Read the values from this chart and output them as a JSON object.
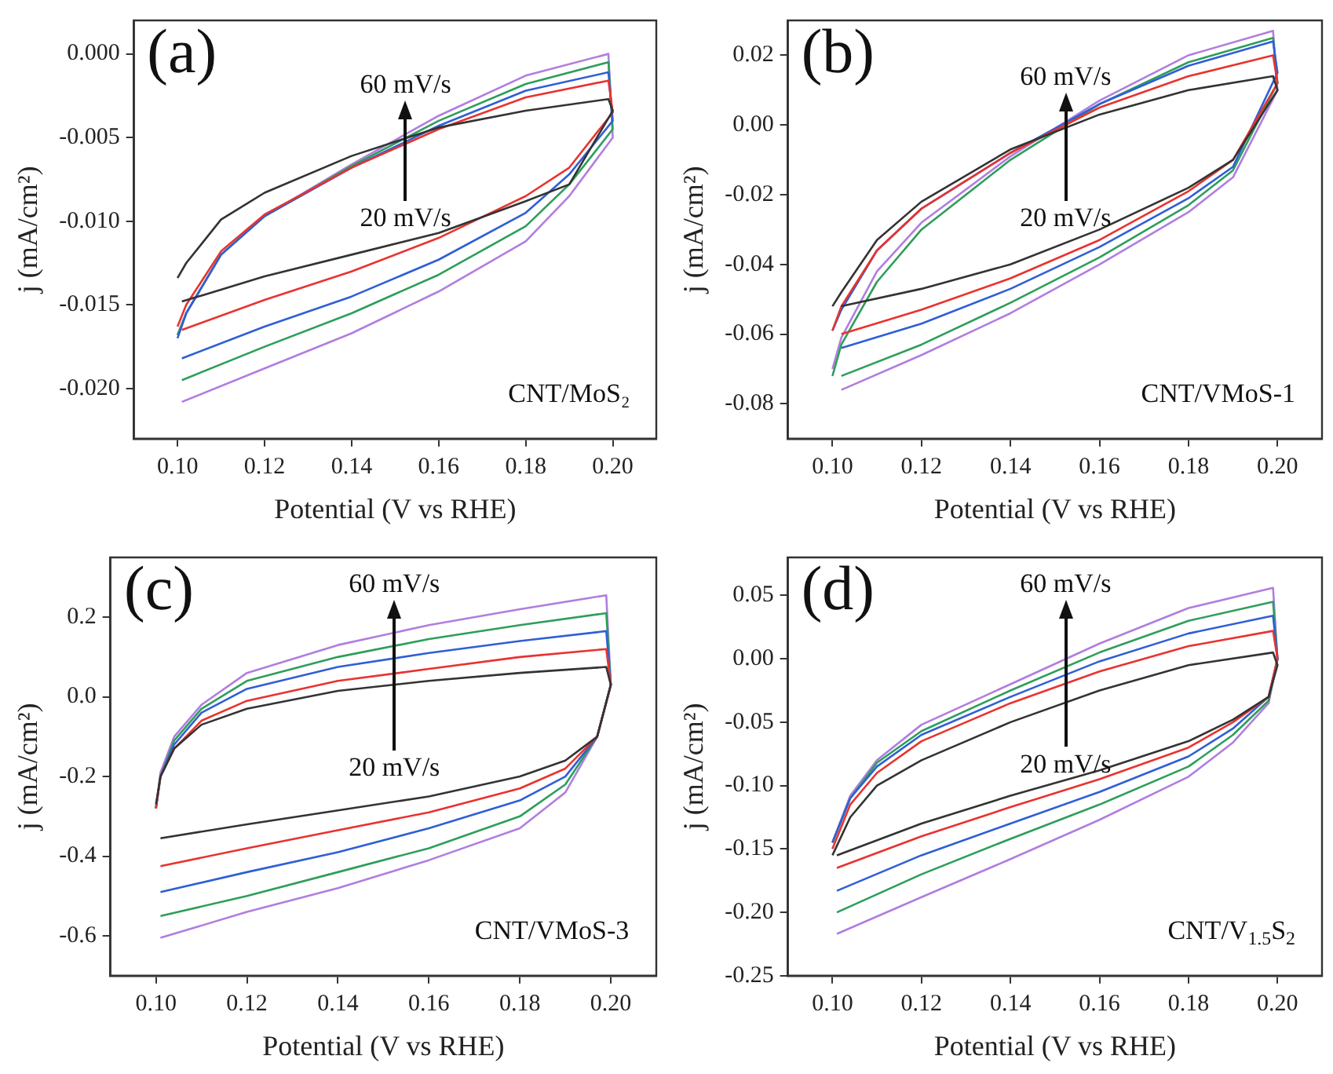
{
  "chart_data": [
    {
      "type": "line",
      "xlabel": "Potential (V vs RHE)",
      "ylabel": "j (mA/cm²)",
      "annotations": [
        "(a)",
        "60 mV/s",
        "20 mV/s",
        "CNT/MoS₂"
      ],
      "xlim": [
        0.09,
        0.21
      ],
      "xticks": [
        {
          "value": 0.1,
          "label": "0.10"
        },
        {
          "value": 0.12,
          "label": "0.12"
        },
        {
          "value": 0.14,
          "label": "0.14"
        },
        {
          "value": 0.16,
          "label": "0.16"
        },
        {
          "value": 0.18,
          "label": "0.18"
        },
        {
          "value": 0.2,
          "label": "0.20"
        }
      ],
      "ylim": [
        -0.023,
        0.002
      ],
      "yticks": [
        {
          "value": -0.02,
          "label": "-0.020"
        },
        {
          "value": -0.015,
          "label": "-0.015"
        },
        {
          "value": -0.01,
          "label": "-0.010"
        },
        {
          "value": -0.005,
          "label": "-0.005"
        },
        {
          "value": 0,
          "label": "0.000"
        }
      ],
      "x": [
        0.101,
        0.12,
        0.14,
        0.16,
        0.18,
        0.19,
        0.2,
        0.199,
        0.18,
        0.16,
        0.14,
        0.12,
        0.11,
        0.102,
        0.1
      ],
      "series": [
        {
          "color": "#333333",
          "values": [
            -0.0148,
            -0.0133,
            -0.012,
            -0.0107,
            -0.0088,
            -0.0078,
            -0.0034,
            -0.0027,
            -0.0034,
            -0.0044,
            -0.0061,
            -0.0083,
            -0.0099,
            -0.0125,
            -0.0134
          ]
        },
        {
          "color": "#e8332f",
          "values": [
            -0.0165,
            -0.0147,
            -0.013,
            -0.011,
            -0.0085,
            -0.0068,
            -0.0035,
            -0.0016,
            -0.0026,
            -0.0045,
            -0.0068,
            -0.0096,
            -0.0118,
            -0.015,
            -0.0163
          ]
        },
        {
          "color": "#2f5fd6",
          "values": [
            -0.0182,
            -0.0163,
            -0.0145,
            -0.0123,
            -0.0095,
            -0.0072,
            -0.004,
            -0.0011,
            -0.0022,
            -0.0043,
            -0.0068,
            -0.0097,
            -0.012,
            -0.0155,
            -0.017
          ]
        },
        {
          "color": "#2e9e5a",
          "values": [
            -0.0195,
            -0.0175,
            -0.0155,
            -0.0132,
            -0.0103,
            -0.0078,
            -0.0045,
            -0.0005,
            -0.0018,
            -0.004,
            -0.0067,
            -0.0097,
            -0.012,
            -0.0155,
            -0.0168
          ]
        },
        {
          "color": "#b07ee0",
          "values": [
            -0.0208,
            -0.0188,
            -0.0167,
            -0.0142,
            -0.0112,
            -0.0085,
            -0.005,
            0.0,
            -0.0013,
            -0.0037,
            -0.0066,
            -0.0097,
            -0.012,
            -0.0155,
            -0.0168
          ]
        }
      ]
    },
    {
      "type": "line",
      "xlabel": "Potential (V vs RHE)",
      "ylabel": "j (mA/cm²)",
      "annotations": [
        "(b)",
        "60 mV/s",
        "20 mV/s",
        "CNT/VMoS-1"
      ],
      "xlim": [
        0.09,
        0.21
      ],
      "xticks": [
        {
          "value": 0.1,
          "label": "0.10"
        },
        {
          "value": 0.12,
          "label": "0.12"
        },
        {
          "value": 0.14,
          "label": "0.14"
        },
        {
          "value": 0.16,
          "label": "0.16"
        },
        {
          "value": 0.18,
          "label": "0.18"
        },
        {
          "value": 0.2,
          "label": "0.20"
        }
      ],
      "ylim": [
        -0.09,
        0.03
      ],
      "yticks": [
        {
          "value": -0.08,
          "label": "-0.08"
        },
        {
          "value": -0.06,
          "label": "-0.06"
        },
        {
          "value": -0.04,
          "label": "-0.04"
        },
        {
          "value": -0.02,
          "label": "-0.02"
        },
        {
          "value": 0,
          "label": "0.00"
        },
        {
          "value": 0.02,
          "label": "0.02"
        }
      ],
      "x": [
        0.102,
        0.12,
        0.14,
        0.16,
        0.18,
        0.19,
        0.2,
        0.199,
        0.18,
        0.16,
        0.14,
        0.12,
        0.11,
        0.102,
        0.1
      ],
      "series": [
        {
          "color": "#333333",
          "values": [
            -0.052,
            -0.047,
            -0.04,
            -0.03,
            -0.018,
            -0.01,
            0.01,
            0.014,
            0.01,
            0.003,
            -0.007,
            -0.022,
            -0.033,
            -0.048,
            -0.052
          ]
        },
        {
          "color": "#e8332f",
          "values": [
            -0.06,
            -0.053,
            -0.044,
            -0.033,
            -0.019,
            -0.01,
            0.012,
            0.02,
            0.014,
            0.005,
            -0.008,
            -0.024,
            -0.036,
            -0.052,
            -0.059
          ]
        },
        {
          "color": "#2f5fd6",
          "values": [
            -0.064,
            -0.057,
            -0.047,
            -0.035,
            -0.021,
            -0.012,
            0.015,
            0.024,
            0.017,
            0.006,
            -0.008,
            -0.024,
            -0.036,
            -0.053,
            -0.059
          ]
        },
        {
          "color": "#2e9e5a",
          "values": [
            -0.072,
            -0.063,
            -0.051,
            -0.038,
            -0.023,
            -0.013,
            0.012,
            0.025,
            0.018,
            0.006,
            -0.01,
            -0.03,
            -0.045,
            -0.063,
            -0.072
          ]
        },
        {
          "color": "#b07ee0",
          "values": [
            -0.076,
            -0.066,
            -0.054,
            -0.04,
            -0.025,
            -0.015,
            0.01,
            0.027,
            0.02,
            0.007,
            -0.009,
            -0.028,
            -0.042,
            -0.061,
            -0.07
          ]
        }
      ]
    },
    {
      "type": "line",
      "xlabel": "Potential (V vs RHE)",
      "ylabel": "j (mA/cm²)",
      "annotations": [
        "(c)",
        "60 mV/s",
        "20 mV/s",
        "CNT/VMoS-3"
      ],
      "xlim": [
        0.09,
        0.21
      ],
      "xticks": [
        {
          "value": 0.1,
          "label": "0.10"
        },
        {
          "value": 0.12,
          "label": "0.12"
        },
        {
          "value": 0.14,
          "label": "0.14"
        },
        {
          "value": 0.16,
          "label": "0.16"
        },
        {
          "value": 0.18,
          "label": "0.18"
        },
        {
          "value": 0.2,
          "label": "0.20"
        }
      ],
      "ylim": [
        -0.7,
        0.35
      ],
      "yticks": [
        {
          "value": -0.6,
          "label": "-0.6"
        },
        {
          "value": -0.4,
          "label": "-0.4"
        },
        {
          "value": -0.2,
          "label": "-0.2"
        },
        {
          "value": 0,
          "label": "0.0"
        },
        {
          "value": 0.2,
          "label": "0.2"
        }
      ],
      "x": [
        0.101,
        0.12,
        0.14,
        0.16,
        0.18,
        0.19,
        0.197,
        0.2,
        0.199,
        0.18,
        0.16,
        0.14,
        0.12,
        0.11,
        0.104,
        0.101,
        0.1
      ],
      "series": [
        {
          "color": "#333333",
          "values": [
            -0.355,
            -0.32,
            -0.285,
            -0.25,
            -0.2,
            -0.16,
            -0.1,
            0.03,
            0.075,
            0.06,
            0.04,
            0.015,
            -0.03,
            -0.07,
            -0.13,
            -0.2,
            -0.27
          ]
        },
        {
          "color": "#e8332f",
          "values": [
            -0.425,
            -0.38,
            -0.335,
            -0.29,
            -0.23,
            -0.18,
            -0.1,
            0.03,
            0.12,
            0.1,
            0.07,
            0.04,
            -0.01,
            -0.06,
            -0.13,
            -0.2,
            -0.28
          ]
        },
        {
          "color": "#2f5fd6",
          "values": [
            -0.49,
            -0.44,
            -0.39,
            -0.33,
            -0.26,
            -0.2,
            -0.1,
            0.03,
            0.165,
            0.14,
            0.11,
            0.075,
            0.02,
            -0.04,
            -0.12,
            -0.2,
            -0.28
          ]
        },
        {
          "color": "#2e9e5a",
          "values": [
            -0.55,
            -0.5,
            -0.44,
            -0.38,
            -0.3,
            -0.22,
            -0.1,
            0.03,
            0.21,
            0.18,
            0.145,
            0.1,
            0.04,
            -0.03,
            -0.11,
            -0.2,
            -0.28
          ]
        },
        {
          "color": "#b07ee0",
          "values": [
            -0.605,
            -0.54,
            -0.48,
            -0.41,
            -0.33,
            -0.24,
            -0.1,
            0.03,
            0.255,
            0.22,
            0.18,
            0.13,
            0.06,
            -0.02,
            -0.1,
            -0.19,
            -0.28
          ]
        }
      ]
    },
    {
      "type": "line",
      "xlabel": "Potential (V vs RHE)",
      "ylabel": "j (mA/cm²)",
      "annotations": [
        "(d)",
        "60 mV/s",
        "20 mV/s",
        "CNT/V$_{1.5}$S$_{2}$"
      ],
      "xlim": [
        0.09,
        0.21
      ],
      "xticks": [
        {
          "value": 0.1,
          "label": "0.10"
        },
        {
          "value": 0.12,
          "label": "0.12"
        },
        {
          "value": 0.14,
          "label": "0.14"
        },
        {
          "value": 0.16,
          "label": "0.16"
        },
        {
          "value": 0.18,
          "label": "0.18"
        },
        {
          "value": 0.2,
          "label": "0.20"
        }
      ],
      "ylim": [
        -0.25,
        0.08
      ],
      "yticks": [
        {
          "value": -0.25,
          "label": "-0.25"
        },
        {
          "value": -0.2,
          "label": "-0.20"
        },
        {
          "value": -0.15,
          "label": "-0.15"
        },
        {
          "value": -0.1,
          "label": "-0.10"
        },
        {
          "value": -0.05,
          "label": "-0.05"
        },
        {
          "value": 0,
          "label": "0.00"
        },
        {
          "value": 0.05,
          "label": "0.05"
        }
      ],
      "x": [
        0.101,
        0.12,
        0.14,
        0.16,
        0.18,
        0.19,
        0.198,
        0.2,
        0.199,
        0.18,
        0.16,
        0.14,
        0.12,
        0.11,
        0.104,
        0.1
      ],
      "series": [
        {
          "color": "#333333",
          "values": [
            -0.155,
            -0.13,
            -0.108,
            -0.088,
            -0.065,
            -0.048,
            -0.03,
            -0.005,
            0.005,
            -0.005,
            -0.025,
            -0.05,
            -0.08,
            -0.1,
            -0.125,
            -0.155
          ]
        },
        {
          "color": "#e8332f",
          "values": [
            -0.165,
            -0.14,
            -0.117,
            -0.095,
            -0.07,
            -0.05,
            -0.03,
            0.0,
            0.022,
            0.01,
            -0.01,
            -0.035,
            -0.065,
            -0.09,
            -0.115,
            -0.15
          ]
        },
        {
          "color": "#2f5fd6",
          "values": [
            -0.183,
            -0.155,
            -0.13,
            -0.105,
            -0.077,
            -0.055,
            -0.03,
            0.0,
            0.034,
            0.02,
            -0.002,
            -0.03,
            -0.06,
            -0.085,
            -0.11,
            -0.145
          ]
        },
        {
          "color": "#2e9e5a",
          "values": [
            -0.2,
            -0.17,
            -0.142,
            -0.115,
            -0.085,
            -0.06,
            -0.033,
            0.0,
            0.045,
            0.03,
            0.005,
            -0.025,
            -0.057,
            -0.082,
            -0.11,
            -0.145
          ]
        },
        {
          "color": "#b07ee0",
          "values": [
            -0.217,
            -0.188,
            -0.158,
            -0.127,
            -0.093,
            -0.066,
            -0.035,
            0.0,
            0.056,
            0.04,
            0.012,
            -0.02,
            -0.052,
            -0.08,
            -0.108,
            -0.145
          ]
        }
      ]
    }
  ]
}
